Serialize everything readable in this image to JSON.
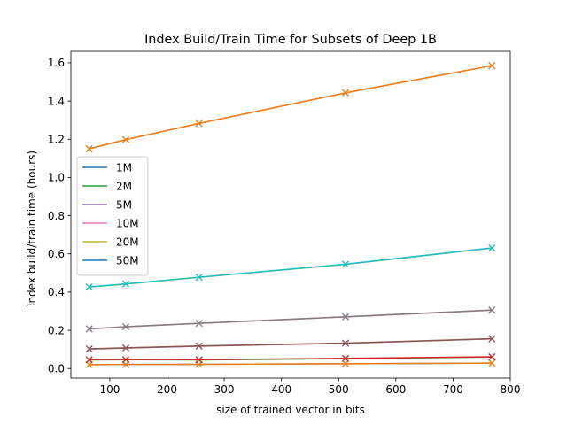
{
  "chart_data": {
    "type": "line",
    "title": "Index Build/Train Time for Subsets of Deep 1B",
    "xlabel": "size of trained vector in bits",
    "ylabel": "Index build/train time (hours)",
    "xlim": [
      32,
      800
    ],
    "ylim": [
      -0.05,
      1.66
    ],
    "xticks": [
      100,
      200,
      300,
      400,
      500,
      600,
      700,
      800
    ],
    "yticks": [
      0.0,
      0.2,
      0.4,
      0.6,
      0.8,
      1.0,
      1.2,
      1.4,
      1.6
    ],
    "x": [
      64,
      128,
      256,
      512,
      768
    ],
    "grid": false,
    "legend_position": "center-left",
    "marker": "x",
    "legend": [
      {
        "name": "1M",
        "color": "#1f77b4"
      },
      {
        "name": "2M",
        "color": "#2ca02c"
      },
      {
        "name": "5M",
        "color": "#9467bd"
      },
      {
        "name": "10M",
        "color": "#e377c2"
      },
      {
        "name": "20M",
        "color": "#bcbd22"
      },
      {
        "name": "50M",
        "color": "#1f77b4"
      }
    ],
    "series": [
      {
        "color": "#1f77b4",
        "values": [
          0.02,
          0.021,
          0.022,
          0.025,
          0.028
        ]
      },
      {
        "color": "#ff7f0e",
        "values": [
          0.02,
          0.021,
          0.022,
          0.025,
          0.028
        ]
      },
      {
        "color": "#2ca02c",
        "values": [
          0.045,
          0.046,
          0.045,
          0.052,
          0.06
        ]
      },
      {
        "color": "#d62728",
        "values": [
          0.046,
          0.047,
          0.046,
          0.053,
          0.061
        ]
      },
      {
        "color": "#9467bd",
        "values": [
          0.102,
          0.107,
          0.117,
          0.132,
          0.155
        ]
      },
      {
        "color": "#8c564b",
        "values": [
          0.103,
          0.108,
          0.118,
          0.133,
          0.156
        ]
      },
      {
        "color": "#e377c2",
        "values": [
          0.207,
          0.218,
          0.236,
          0.27,
          0.305
        ]
      },
      {
        "color": "#7f7f7f",
        "values": [
          0.208,
          0.219,
          0.237,
          0.271,
          0.306
        ]
      },
      {
        "color": "#bcbd22",
        "values": [
          0.426,
          0.442,
          0.477,
          0.545,
          0.63
        ]
      },
      {
        "color": "#17becf",
        "values": [
          0.427,
          0.443,
          0.478,
          0.546,
          0.631
        ]
      },
      {
        "color": "#1f77b4",
        "values": [
          1.15,
          1.198,
          1.283,
          1.443,
          1.585
        ]
      },
      {
        "color": "#ff7f0e",
        "values": [
          1.15,
          1.198,
          1.283,
          1.443,
          1.585
        ]
      }
    ]
  }
}
